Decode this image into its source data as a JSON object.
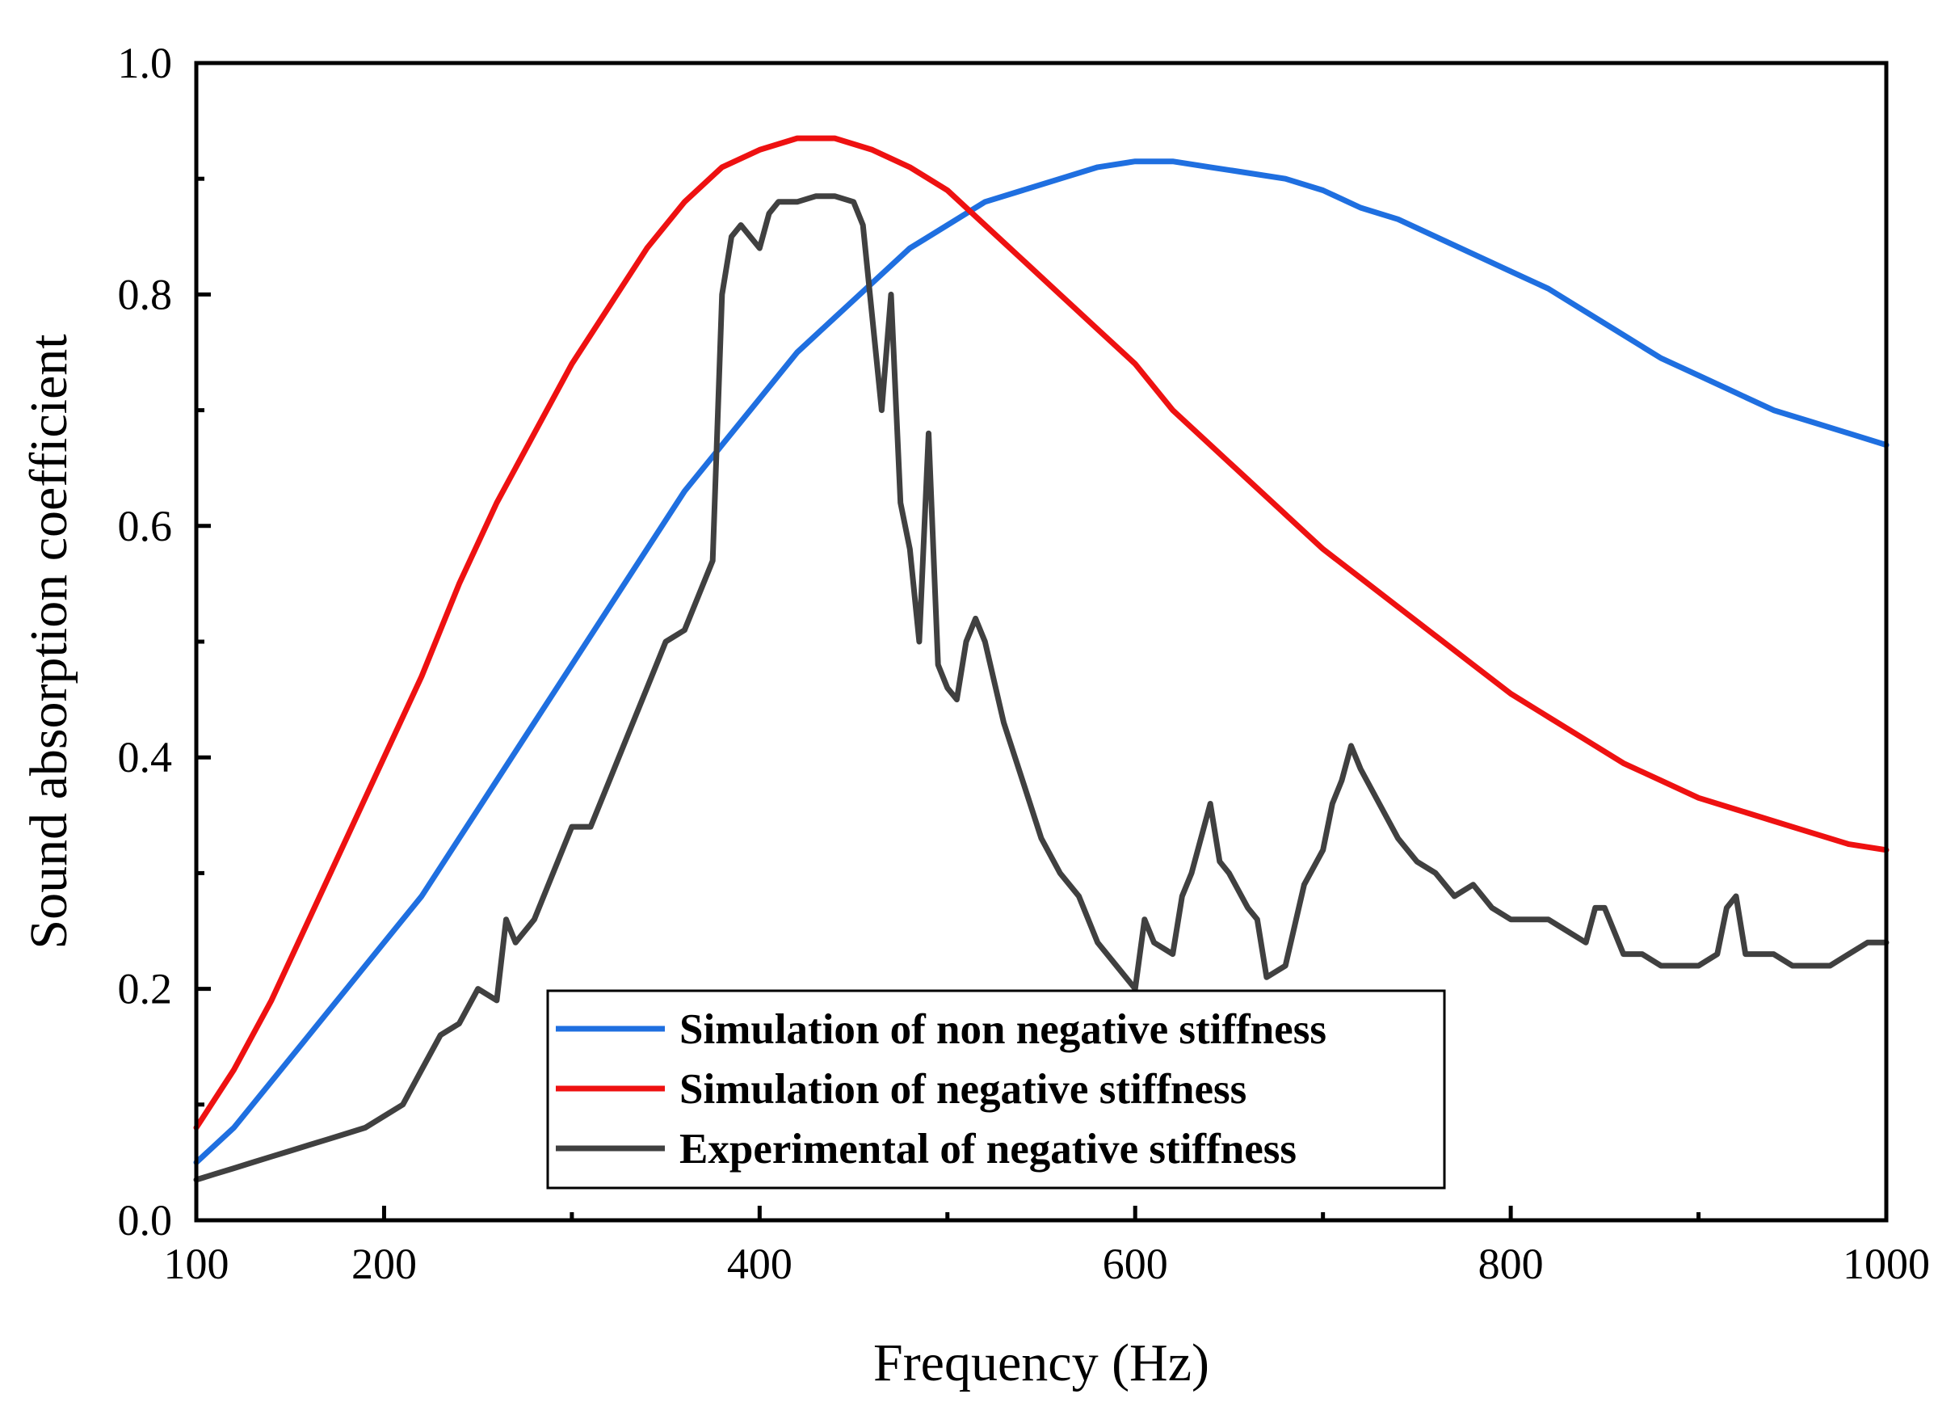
{
  "chart_data": {
    "type": "line",
    "title": "",
    "xlabel": "Frequency (Hz)",
    "ylabel": "Sound absorption coefficient",
    "xlim": [
      100,
      1000
    ],
    "ylim": [
      0.0,
      1.0
    ],
    "x_ticks": [
      100,
      200,
      400,
      600,
      800,
      1000
    ],
    "x_tick_labels": [
      "100",
      "200",
      "400",
      "600",
      "800",
      "1000"
    ],
    "x_minor_ticks": [
      300,
      500,
      700,
      900
    ],
    "y_ticks": [
      0.0,
      0.2,
      0.4,
      0.6,
      0.8,
      1.0
    ],
    "y_tick_labels": [
      "0.0",
      "0.2",
      "0.4",
      "0.6",
      "0.8",
      "1.0"
    ],
    "y_minor_ticks": [
      0.1,
      0.3,
      0.5,
      0.7,
      0.9
    ],
    "grid": false,
    "legend_position": "bottom-center",
    "series": [
      {
        "name": "Simulation of non negative stiffness",
        "color": "#1f6fe0",
        "x": [
          100,
          120,
          140,
          160,
          180,
          200,
          220,
          240,
          260,
          280,
          300,
          320,
          340,
          360,
          380,
          400,
          420,
          440,
          460,
          480,
          500,
          520,
          540,
          560,
          580,
          600,
          620,
          640,
          660,
          680,
          700,
          720,
          740,
          760,
          780,
          800,
          820,
          840,
          860,
          880,
          900,
          920,
          940,
          960,
          980,
          1000
        ],
        "y": [
          0.05,
          0.08,
          0.12,
          0.16,
          0.2,
          0.24,
          0.28,
          0.33,
          0.38,
          0.43,
          0.48,
          0.53,
          0.58,
          0.63,
          0.67,
          0.71,
          0.75,
          0.78,
          0.81,
          0.84,
          0.86,
          0.88,
          0.89,
          0.9,
          0.91,
          0.915,
          0.915,
          0.91,
          0.905,
          0.9,
          0.89,
          0.875,
          0.865,
          0.85,
          0.835,
          0.82,
          0.805,
          0.785,
          0.765,
          0.745,
          0.73,
          0.715,
          0.7,
          0.69,
          0.68,
          0.67
        ]
      },
      {
        "name": "Simulation of negative stiffness",
        "color": "#ee1111",
        "x": [
          100,
          120,
          140,
          160,
          180,
          200,
          220,
          240,
          260,
          280,
          300,
          320,
          340,
          360,
          380,
          400,
          420,
          440,
          460,
          480,
          500,
          520,
          540,
          560,
          580,
          600,
          620,
          640,
          660,
          680,
          700,
          720,
          740,
          760,
          780,
          800,
          820,
          840,
          860,
          880,
          900,
          920,
          940,
          960,
          980,
          1000
        ],
        "y": [
          0.08,
          0.13,
          0.19,
          0.26,
          0.33,
          0.4,
          0.47,
          0.55,
          0.62,
          0.68,
          0.74,
          0.79,
          0.84,
          0.88,
          0.91,
          0.925,
          0.935,
          0.935,
          0.925,
          0.91,
          0.89,
          0.86,
          0.83,
          0.8,
          0.77,
          0.74,
          0.7,
          0.67,
          0.64,
          0.61,
          0.58,
          0.555,
          0.53,
          0.505,
          0.48,
          0.455,
          0.435,
          0.415,
          0.395,
          0.38,
          0.365,
          0.355,
          0.345,
          0.335,
          0.325,
          0.32
        ]
      },
      {
        "name": "Experimental of negative stiffness",
        "color": "#404040",
        "x": [
          100,
          110,
          120,
          130,
          140,
          150,
          160,
          170,
          180,
          190,
          200,
          210,
          220,
          230,
          240,
          250,
          260,
          265,
          270,
          280,
          290,
          300,
          310,
          320,
          330,
          340,
          350,
          360,
          370,
          375,
          380,
          385,
          390,
          400,
          405,
          410,
          420,
          430,
          440,
          450,
          455,
          460,
          465,
          470,
          475,
          480,
          485,
          490,
          495,
          500,
          505,
          510,
          515,
          520,
          530,
          540,
          550,
          560,
          570,
          580,
          590,
          600,
          605,
          610,
          620,
          625,
          630,
          640,
          645,
          650,
          660,
          665,
          670,
          680,
          690,
          700,
          705,
          710,
          715,
          720,
          730,
          740,
          750,
          760,
          770,
          780,
          790,
          800,
          810,
          820,
          830,
          840,
          845,
          850,
          860,
          870,
          880,
          890,
          900,
          910,
          915,
          920,
          925,
          930,
          940,
          950,
          960,
          970,
          980,
          990,
          1000
        ],
        "y": [
          0.035,
          0.04,
          0.045,
          0.05,
          0.055,
          0.06,
          0.065,
          0.07,
          0.075,
          0.08,
          0.09,
          0.1,
          0.13,
          0.16,
          0.17,
          0.2,
          0.19,
          0.26,
          0.24,
          0.26,
          0.3,
          0.34,
          0.34,
          0.38,
          0.42,
          0.46,
          0.5,
          0.51,
          0.55,
          0.57,
          0.8,
          0.85,
          0.86,
          0.84,
          0.87,
          0.88,
          0.88,
          0.885,
          0.885,
          0.88,
          0.86,
          0.78,
          0.7,
          0.8,
          0.62,
          0.58,
          0.5,
          0.68,
          0.48,
          0.46,
          0.45,
          0.5,
          0.52,
          0.5,
          0.43,
          0.38,
          0.33,
          0.3,
          0.28,
          0.24,
          0.22,
          0.2,
          0.26,
          0.24,
          0.23,
          0.28,
          0.3,
          0.36,
          0.31,
          0.3,
          0.27,
          0.26,
          0.21,
          0.22,
          0.29,
          0.32,
          0.36,
          0.38,
          0.41,
          0.39,
          0.36,
          0.33,
          0.31,
          0.3,
          0.28,
          0.29,
          0.27,
          0.26,
          0.26,
          0.26,
          0.25,
          0.24,
          0.27,
          0.27,
          0.23,
          0.23,
          0.22,
          0.22,
          0.22,
          0.23,
          0.27,
          0.28,
          0.23,
          0.23,
          0.23,
          0.22,
          0.22,
          0.22,
          0.23,
          0.24,
          0.24
        ]
      }
    ]
  }
}
